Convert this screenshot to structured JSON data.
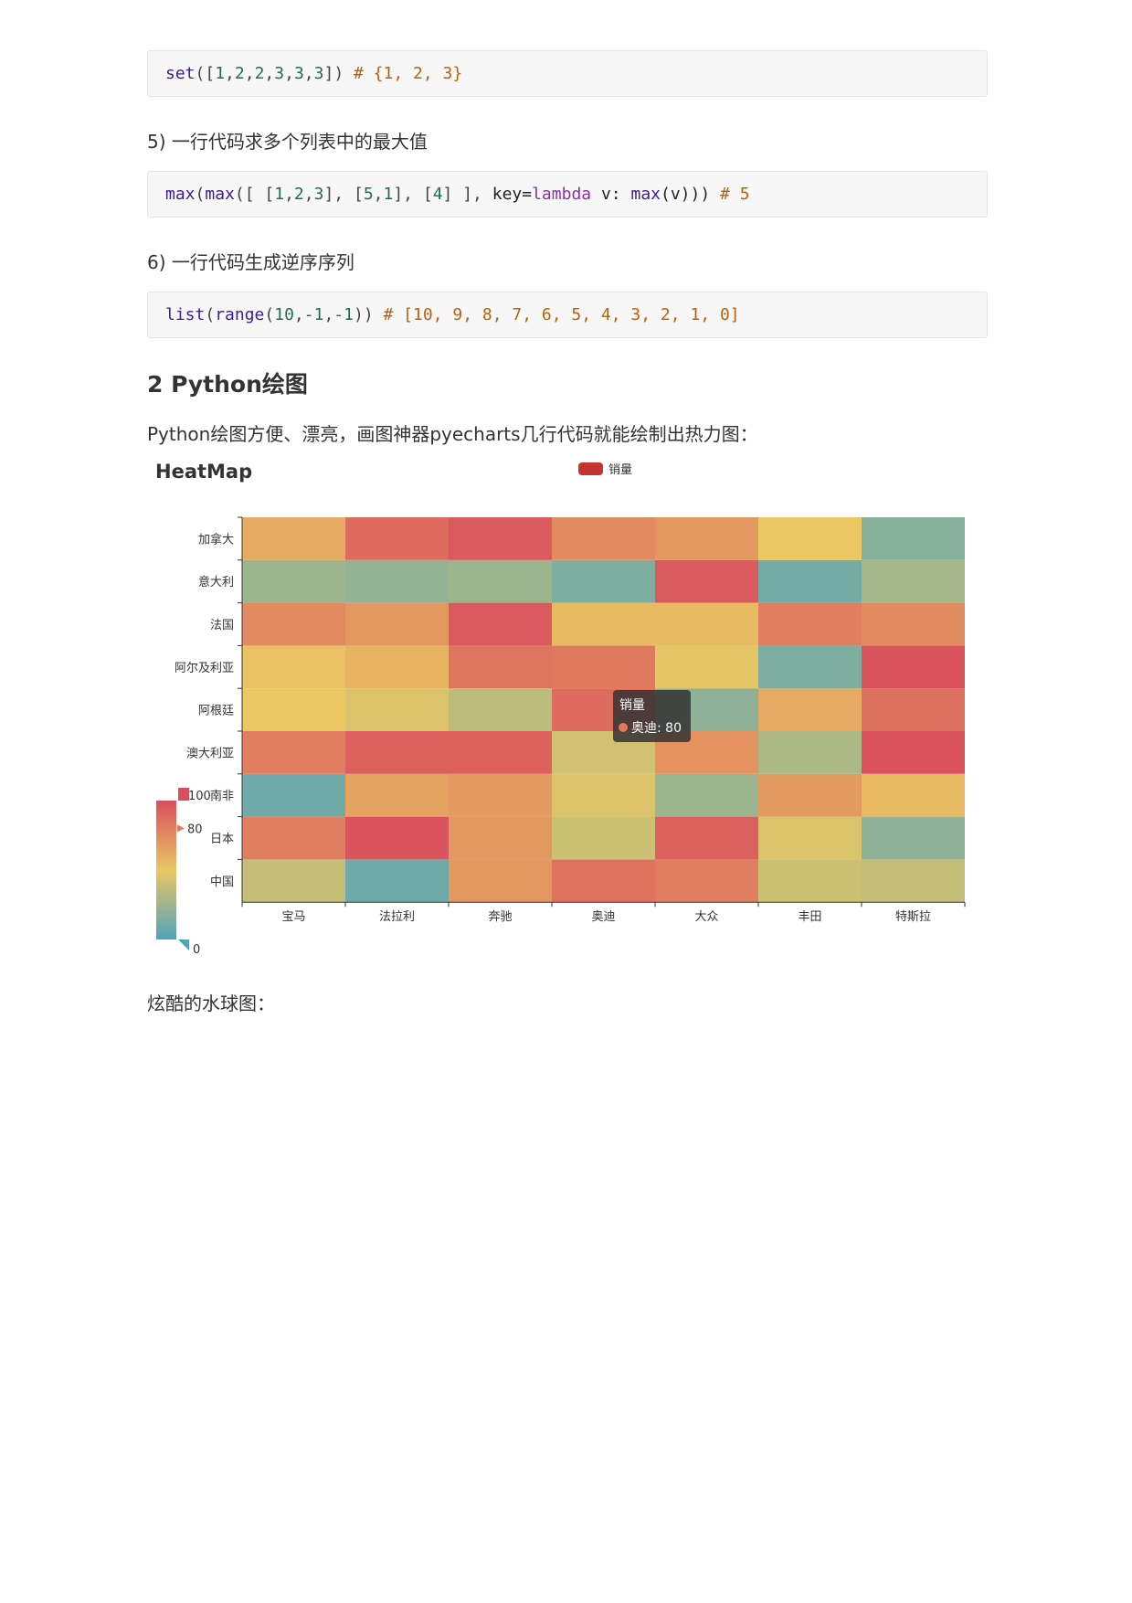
{
  "code1": {
    "t1": "set",
    "t2": "([",
    "t3": "1",
    "t4": ",",
    "t5": "2",
    "t6": ",",
    "t7": "2",
    "t8": ",",
    "t9": "3",
    "t10": ",",
    "t11": "3",
    "t12": ",",
    "t13": "3",
    "t14": "])",
    "comment": " # {1, 2, 3}"
  },
  "item5": "5) 一行代码求多个列表中的最大值",
  "code2": {
    "max1": "max",
    "p1": "(",
    "max2": "max",
    "p2": "([ [",
    "a1": "1",
    "c1": ",",
    "a2": "2",
    "c2": ",",
    "a3": "3",
    "p3": "], [",
    "a4": "5",
    "c3": ",",
    "a5": "1",
    "p4": "], [",
    "a6": "4",
    "p5": "] ], ",
    "key": "key=",
    "lambda": "lambda",
    "v": " v: ",
    "max3": "max",
    "p6": "(v))) ",
    "comment": "# 5"
  },
  "item6": "6) 一行代码生成逆序序列",
  "code3": {
    "list": "list",
    "p1": "(",
    "range": "range",
    "p2": "(",
    "a1": "10",
    "c1": ",",
    "a2": "-1",
    "c2": ",",
    "a3": "-1",
    "p3": ")) ",
    "comment": "# [10, 9, 8, 7, 6, 5, 4, 3, 2, 1, 0]"
  },
  "section_heading": "2 Python绘图",
  "intro": "Python绘图方便、漂亮，画图神器pyecharts几行代码就能绘制出热力图：",
  "outro": "炫酷的水球图：",
  "chart_data": {
    "type": "heatmap",
    "title": "HeatMap",
    "legend": [
      "销量"
    ],
    "legend_color": "#c23531",
    "x_categories": [
      "宝马",
      "法拉利",
      "奔驰",
      "奥迪",
      "大众",
      "丰田",
      "特斯拉"
    ],
    "y_categories": [
      "中国",
      "日本",
      "南非",
      "澳大利亚",
      "阿根廷",
      "阿尔及利亚",
      "法国",
      "意大利",
      "加拿大"
    ],
    "values": [
      [
        38,
        10,
        70,
        85,
        80,
        40,
        38
      ],
      [
        80,
        98,
        70,
        40,
        92,
        45,
        20
      ],
      [
        10,
        65,
        68,
        45,
        25,
        68,
        55
      ],
      [
        80,
        92,
        92,
        42,
        72,
        30,
        98
      ],
      [
        50,
        45,
        35,
        88,
        20,
        62,
        86
      ],
      [
        52,
        58,
        84,
        82,
        48,
        15,
        98
      ],
      [
        75,
        70,
        95,
        55,
        55,
        80,
        75
      ],
      [
        25,
        22,
        25,
        15,
        95,
        12,
        28
      ],
      [
        62,
        88,
        95,
        75,
        70,
        50,
        18
      ]
    ],
    "visual_map": {
      "min": 0,
      "max": 100,
      "max_label": "100",
      "min_label": "0",
      "handle_label": "80"
    },
    "colors": [
      "#50a3ba",
      "#eac763",
      "#d94e5d"
    ],
    "tooltip": {
      "series": "销量",
      "label": "奥迪: 80",
      "marker_color": "#e5775b"
    }
  }
}
